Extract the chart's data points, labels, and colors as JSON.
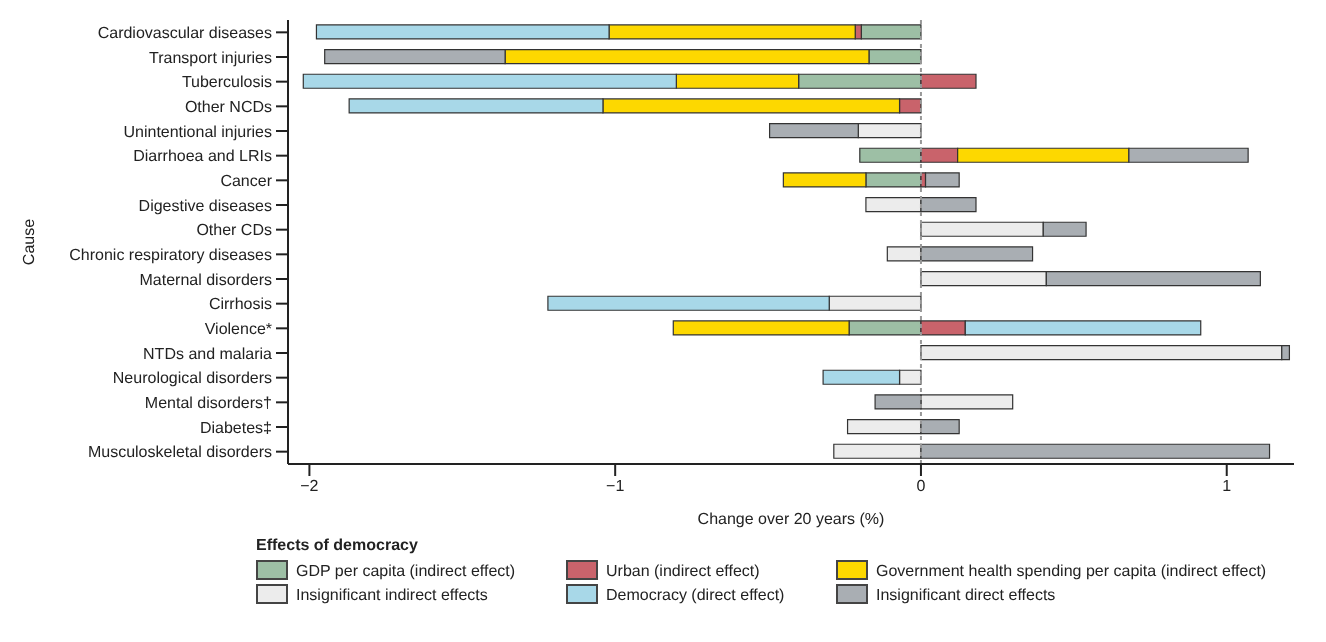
{
  "chart_data": {
    "type": "bar",
    "orientation": "horizontal",
    "stacked": true,
    "xlabel": "Change over 20 years (%)",
    "ylabel": "Cause",
    "legend_title": "Effects of democracy",
    "legend": "bottom",
    "grid": false,
    "categories": [
      "Cardiovascular diseases",
      "Transport injuries",
      "Tuberculosis",
      "Other NCDs",
      "Unintentional injuries",
      "Diarrhoea and LRIs",
      "Cancer",
      "Digestive diseases",
      "Other CDs",
      "Chronic respiratory diseases",
      "Maternal disorders",
      "Cirrhosis",
      "Violence*",
      "NTDs and malaria",
      "Neurological disorders",
      "Mental disorders†",
      "Diabetes‡",
      "Musculoskeletal disorders"
    ],
    "xlim": [
      -2.07,
      1.22
    ],
    "xticks": [
      {
        "value": -2,
        "label": "−2"
      },
      {
        "value": -1,
        "label": "−1"
      },
      0,
      1
    ],
    "ref_lines": [
      {
        "axis": "x",
        "value": 0,
        "line_style": "dotted",
        "color": "#999999"
      }
    ],
    "series": [
      {
        "name": "GDP per capita (indirect effect)",
        "color": "#9dbfa5",
        "values": [
          -0.195,
          -0.17,
          -0.4,
          null,
          null,
          -0.2,
          -0.18,
          null,
          null,
          null,
          null,
          null,
          -0.235,
          null,
          null,
          null,
          null,
          null
        ]
      },
      {
        "name": "Urban (indirect effect)",
        "color": "#c9636b",
        "values": [
          -0.02,
          null,
          0.18,
          -0.07,
          null,
          0.12,
          0.015,
          null,
          null,
          null,
          null,
          null,
          0.145,
          null,
          null,
          null,
          null,
          null
        ]
      },
      {
        "name": "Government health spending per capita (indirect effect)",
        "color": "#fdd800",
        "values": [
          -0.805,
          -1.19,
          -0.4,
          -0.97,
          null,
          0.56,
          -0.27,
          null,
          null,
          null,
          null,
          null,
          -0.575,
          null,
          null,
          null,
          null,
          null
        ]
      },
      {
        "name": "Insignificant indirect effects",
        "color": "#ececec",
        "values": [
          null,
          null,
          null,
          null,
          -0.205,
          null,
          null,
          -0.18,
          0.4,
          -0.11,
          0.41,
          -0.3,
          null,
          1.18,
          -0.07,
          0.3,
          -0.24,
          -0.285
        ]
      },
      {
        "name": "Democracy (direct effect)",
        "color": "#a8d8e8",
        "values": [
          -0.957,
          null,
          -1.22,
          -0.83,
          null,
          null,
          null,
          null,
          null,
          null,
          null,
          -0.92,
          0.77,
          null,
          -0.25,
          null,
          null,
          null
        ]
      },
      {
        "name": "Insignificant direct effects",
        "color": "#a9aeb3",
        "values": [
          null,
          -0.59,
          null,
          null,
          -0.29,
          0.39,
          0.11,
          0.18,
          0.14,
          0.365,
          0.7,
          null,
          null,
          0.025,
          null,
          -0.15,
          0.125,
          1.14
        ]
      }
    ]
  }
}
